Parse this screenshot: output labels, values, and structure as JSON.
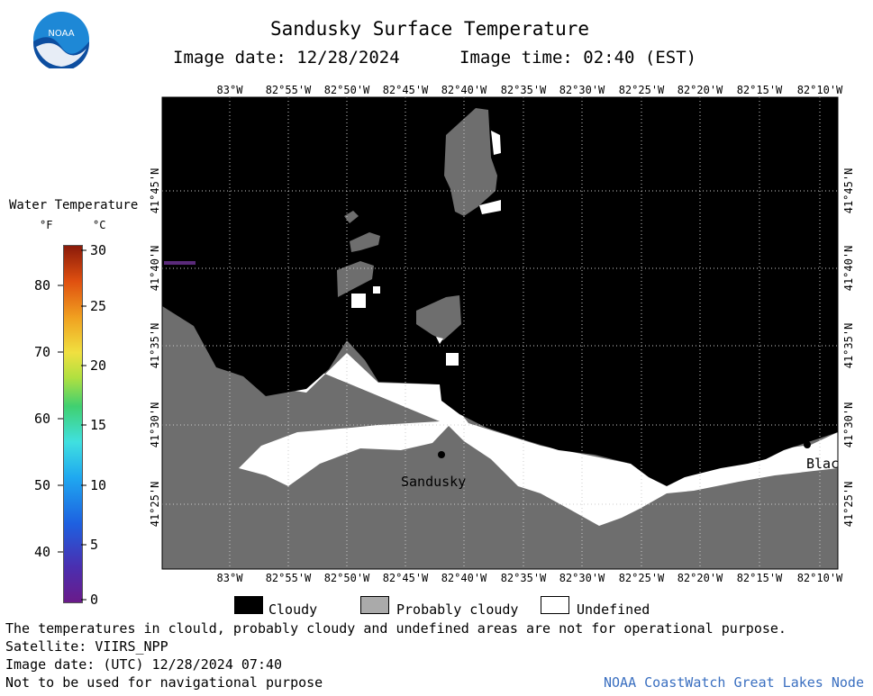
{
  "header": {
    "title": "Sandusky Surface Temperature",
    "image_date": "Image date: 12/28/2024",
    "image_time": "Image time: 02:40 (EST)"
  },
  "logo": {
    "text": "NOAA"
  },
  "scale": {
    "title": "Water Temperature",
    "unit_f": "°F",
    "unit_c": "°C",
    "f_ticks": [
      "80",
      "70",
      "60",
      "50",
      "40"
    ],
    "c_ticks": [
      "30",
      "25",
      "20",
      "15",
      "10",
      "5",
      "0"
    ]
  },
  "map": {
    "lon_labels": [
      "83°W",
      "82°55'W",
      "82°50'W",
      "82°45'W",
      "82°40'W",
      "82°35'W",
      "82°30'W",
      "82°25'W",
      "82°20'W",
      "82°15'W",
      "82°10'W"
    ],
    "lat_labels": [
      "41°45'N",
      "41°40'N",
      "41°35'N",
      "41°30'N",
      "41°25'N"
    ],
    "places": [
      "Sandusky",
      "Blac"
    ],
    "colors": {
      "cloudy": "#000000",
      "probably_cloudy": "#6e6e6e",
      "undefined": "#ffffff"
    }
  },
  "legend": {
    "cloudy": "Cloudy",
    "probably_cloudy": "Probably cloudy",
    "undefined": "Undefined"
  },
  "footer": {
    "note": "The temperatures in clould, probably cloudy and undefined areas are not for operational purpose.",
    "satellite": "Satellite: VIIRS_NPP",
    "utc_date": "Image date: (UTC) 12/28/2024  07:40",
    "nav": "Not to be used for navigational purpose",
    "credit": "NOAA CoastWatch Great Lakes Node"
  }
}
